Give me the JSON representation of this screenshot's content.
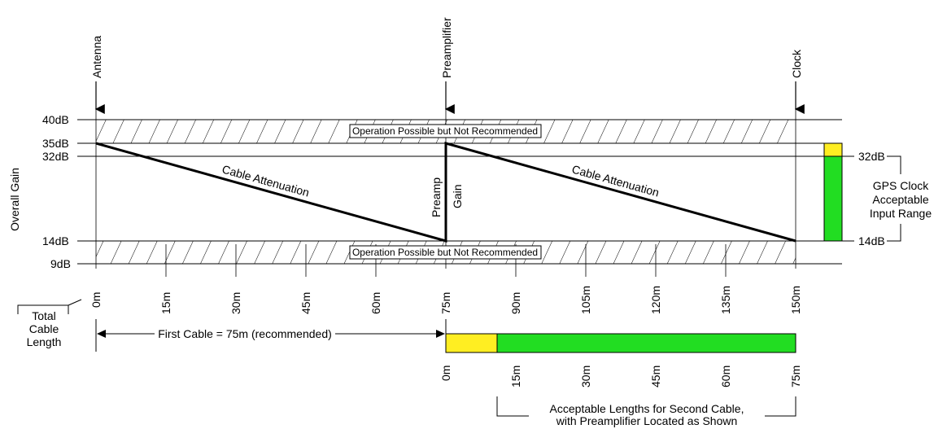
{
  "colors": {
    "yellow": "#ffee22",
    "green": "#22dd22",
    "line": "#000000"
  },
  "markers": {
    "antenna": "Antenna",
    "preamplifier": "Preamplifier",
    "clock": "Clock"
  },
  "y_axis": {
    "title": "Overall Gain",
    "levels": [
      "40dB",
      "35dB",
      "32dB",
      "14dB",
      "9dB"
    ]
  },
  "bands": {
    "upper_label": "Operation Possible but Not Recommended",
    "lower_label": "Operation Possible but Not Recommended"
  },
  "curve_labels": {
    "cable1": "Cable Attenuation",
    "cable2": "Cable Attenuation",
    "preamp": "Preamp",
    "gain": "Gain"
  },
  "range_bar": {
    "top_label": "32dB",
    "bottom_label": "14dB",
    "caption": [
      "GPS Clock",
      "Acceptable",
      "Input Range"
    ]
  },
  "x_axis": {
    "total_label": [
      "Total",
      "Cable",
      "Length"
    ],
    "ticks": [
      "0m",
      "15m",
      "30m",
      "45m",
      "60m",
      "75m",
      "90m",
      "105m",
      "120m",
      "135m",
      "150m"
    ]
  },
  "first_cable": "First Cable = 75m (recommended)",
  "second_cable": {
    "ticks": [
      "0m",
      "15m",
      "30m",
      "45m",
      "60m",
      "75m"
    ],
    "caption": [
      "Acceptable Lengths for Second Cable,",
      "with Preamplifier Located as Shown"
    ]
  }
}
